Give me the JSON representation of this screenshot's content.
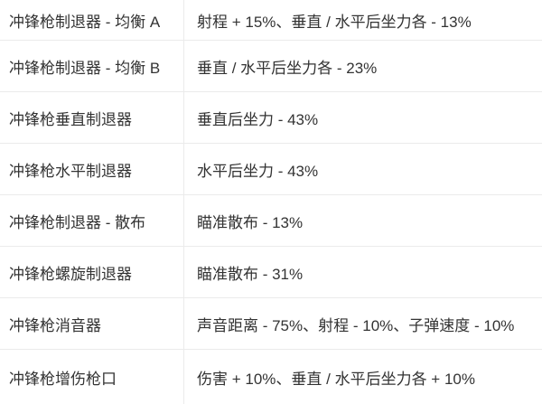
{
  "table": {
    "description_columns": [
      "attachment",
      "effect"
    ],
    "rows": [
      {
        "attachment": "冲锋枪制退器 - 均衡 A",
        "effect": "射程 + 15%、垂直 / 水平后坐力各 - 13%"
      },
      {
        "attachment": "冲锋枪制退器 - 均衡 B",
        "effect": "垂直 / 水平后坐力各 - 23%"
      },
      {
        "attachment": "冲锋枪垂直制退器",
        "effect": "垂直后坐力 - 43%"
      },
      {
        "attachment": "冲锋枪水平制退器",
        "effect": "水平后坐力 - 43%"
      },
      {
        "attachment": "冲锋枪制退器 - 散布",
        "effect": "瞄准散布 - 13%"
      },
      {
        "attachment": "冲锋枪螺旋制退器",
        "effect": "瞄准散布 - 31%"
      },
      {
        "attachment": "冲锋枪消音器",
        "effect": "声音距离 - 75%、射程 - 10%、子弹速度 - 10%"
      },
      {
        "attachment": "冲锋枪增伤枪口",
        "effect": "伤害 + 10%、垂直 / 水平后坐力各 + 10%"
      }
    ]
  },
  "colors": {
    "text": "#333333",
    "border": "#ebebeb",
    "background": "#ffffff"
  }
}
